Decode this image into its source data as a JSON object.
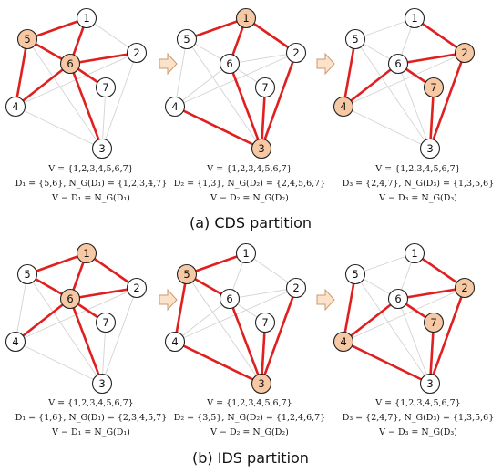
{
  "colors": {
    "selected_edge": "#e01f1f",
    "plain_edge": "#d3d3d3",
    "selected_node_fill": "#f6c9a4",
    "node_fill": "#ffffff",
    "node_stroke": "#222222",
    "arrow_fill": "#fbe2c8",
    "arrow_stroke": "#c89a70"
  },
  "node_labels": [
    "1",
    "2",
    "3",
    "4",
    "5",
    "6",
    "7"
  ],
  "edges": [
    [
      "5",
      "1"
    ],
    [
      "1",
      "6"
    ],
    [
      "1",
      "2"
    ],
    [
      "5",
      "6"
    ],
    [
      "5",
      "4"
    ],
    [
      "2",
      "6"
    ],
    [
      "2",
      "3"
    ],
    [
      "2",
      "4"
    ],
    [
      "6",
      "4"
    ],
    [
      "6",
      "7"
    ],
    [
      "6",
      "3"
    ],
    [
      "7",
      "3"
    ],
    [
      "4",
      "3"
    ],
    [
      "5",
      "3"
    ]
  ],
  "sections": [
    {
      "title": "(a) CDS partition",
      "panels": [
        {
          "dominating_set": [
            "5",
            "6"
          ],
          "red_edges": [
            [
              "5",
              "1"
            ],
            [
              "1",
              "6"
            ],
            [
              "5",
              "6"
            ],
            [
              "5",
              "4"
            ],
            [
              "6",
              "2"
            ],
            [
              "6",
              "4"
            ],
            [
              "6",
              "7"
            ],
            [
              "6",
              "3"
            ]
          ],
          "caption": [
            "V = {1,2,3,4,5,6,7}",
            "D₁ = {5,6}, N_G(D₁) = {1,2,3,4,7}",
            "V − D₁ = N_G(D₁)"
          ]
        },
        {
          "dominating_set": [
            "1",
            "3"
          ],
          "red_edges": [
            [
              "1",
              "5"
            ],
            [
              "1",
              "6"
            ],
            [
              "1",
              "2"
            ],
            [
              "3",
              "6"
            ],
            [
              "3",
              "7"
            ],
            [
              "3",
              "4"
            ],
            [
              "3",
              "2"
            ]
          ],
          "caption": [
            "V = {1,2,3,4,5,6,7}",
            "D₂ = {1,3}, N_G(D₂) = {2,4,5,6,7}",
            "V − D₂ = N_G(D₂)"
          ]
        },
        {
          "dominating_set": [
            "2",
            "4",
            "7"
          ],
          "red_edges": [
            [
              "2",
              "1"
            ],
            [
              "2",
              "6"
            ],
            [
              "2",
              "3"
            ],
            [
              "4",
              "5"
            ],
            [
              "4",
              "6"
            ],
            [
              "7",
              "6"
            ],
            [
              "7",
              "3"
            ]
          ],
          "caption": [
            "V = {1,2,3,4,5,6,7}",
            "D₃ = {2,4,7}, N_G(D₃) = {1,3,5,6}",
            "V − D₃ = N_G(D₃)"
          ]
        }
      ]
    },
    {
      "title": "(b) IDS partition",
      "panels": [
        {
          "dominating_set": [
            "1",
            "6"
          ],
          "red_edges": [
            [
              "1",
              "5"
            ],
            [
              "1",
              "2"
            ],
            [
              "1",
              "6"
            ],
            [
              "6",
              "5"
            ],
            [
              "6",
              "2"
            ],
            [
              "6",
              "4"
            ],
            [
              "6",
              "7"
            ],
            [
              "6",
              "3"
            ]
          ],
          "caption": [
            "V = {1,2,3,4,5,6,7}",
            "D₁ = {1,6}, N_G(D₁) = {2,3,4,5,7}",
            "V − D₁ = N_G(D₁)"
          ]
        },
        {
          "dominating_set": [
            "3",
            "5"
          ],
          "red_edges": [
            [
              "5",
              "1"
            ],
            [
              "5",
              "6"
            ],
            [
              "5",
              "4"
            ],
            [
              "3",
              "6"
            ],
            [
              "3",
              "7"
            ],
            [
              "3",
              "4"
            ],
            [
              "3",
              "2"
            ]
          ],
          "caption": [
            "V = {1,2,3,4,5,6,7}",
            "D₂ = {3,5}, N_G(D₂) = {1,2,4,6,7}",
            "V − D₂ = N_G(D₂)"
          ]
        },
        {
          "dominating_set": [
            "2",
            "4",
            "7"
          ],
          "red_edges": [
            [
              "2",
              "1"
            ],
            [
              "2",
              "6"
            ],
            [
              "2",
              "3"
            ],
            [
              "4",
              "5"
            ],
            [
              "4",
              "6"
            ],
            [
              "4",
              "3"
            ],
            [
              "7",
              "6"
            ],
            [
              "7",
              "3"
            ]
          ],
          "caption": [
            "V = {1,2,3,4,5,6,7}",
            "D₃ = {2,4,7}, N_G(D₃) = {1,3,5,6}",
            "V − D₃ = N_G(D₃)"
          ]
        }
      ]
    }
  ]
}
